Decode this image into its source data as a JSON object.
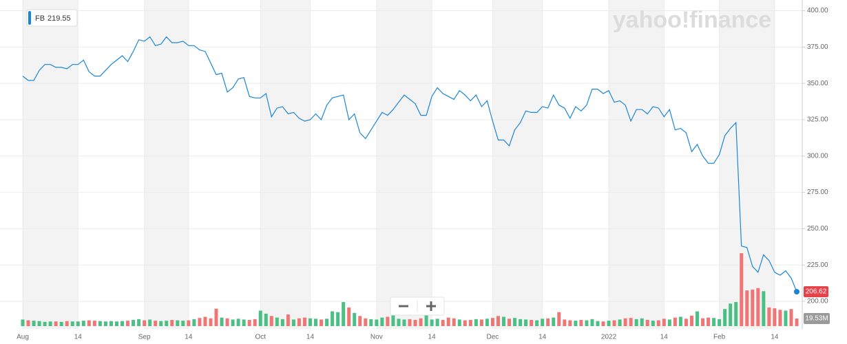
{
  "chart_data": {
    "type": "line",
    "watermark": "yahoo!finance",
    "legend_value": 219.55,
    "categories": [
      "Aug",
      null,
      null,
      null,
      null,
      null,
      null,
      null,
      null,
      null,
      "14",
      null,
      null,
      null,
      null,
      null,
      null,
      null,
      null,
      null,
      null,
      null,
      "Sep",
      null,
      null,
      null,
      null,
      null,
      null,
      null,
      "14",
      null,
      null,
      null,
      null,
      null,
      null,
      null,
      null,
      null,
      null,
      null,
      null,
      "Oct",
      null,
      null,
      null,
      null,
      null,
      null,
      null,
      null,
      "14",
      null,
      null,
      null,
      null,
      null,
      null,
      null,
      null,
      null,
      null,
      null,
      "Nov",
      null,
      null,
      null,
      null,
      null,
      null,
      null,
      null,
      null,
      "14",
      null,
      null,
      null,
      null,
      null,
      null,
      null,
      null,
      null,
      null,
      "Dec",
      null,
      null,
      null,
      null,
      null,
      null,
      null,
      null,
      "14",
      null,
      null,
      null,
      null,
      null,
      null,
      null,
      null,
      null,
      null,
      null,
      "2022",
      null,
      null,
      null,
      null,
      null,
      null,
      null,
      null,
      null,
      "14",
      null,
      null,
      null,
      null,
      null,
      null,
      null,
      null,
      null,
      "Feb",
      null,
      null,
      null,
      null,
      null,
      null,
      null,
      null,
      null,
      "14",
      null,
      null,
      null,
      null
    ],
    "series": [
      {
        "name": "FB",
        "color": "#1a85d6",
        "values": [
          355,
          352,
          352,
          359,
          363,
          363,
          361,
          361,
          360,
          363,
          363,
          366,
          358,
          355,
          355,
          359,
          363,
          366,
          369,
          365,
          372,
          380,
          379,
          382,
          376,
          377,
          382,
          378,
          378,
          379,
          376,
          376,
          373,
          372,
          364,
          356,
          357,
          344,
          347,
          353,
          354,
          341,
          340,
          340,
          343,
          327,
          333,
          334,
          329,
          330,
          326,
          324,
          325,
          329,
          325,
          335,
          340,
          341,
          342,
          325,
          329,
          316,
          312,
          318,
          324,
          330,
          328,
          332,
          337,
          342,
          339,
          336,
          328,
          328,
          341,
          347,
          343,
          341,
          339,
          345,
          342,
          338,
          342,
          334,
          338,
          324,
          311,
          311,
          307,
          318,
          323,
          331,
          330,
          330,
          334,
          333,
          342,
          335,
          333,
          326,
          334,
          331,
          335,
          346,
          346,
          343,
          345,
          337,
          338,
          335,
          324,
          332,
          332,
          329,
          334,
          333,
          327,
          332,
          318,
          319,
          316,
          303,
          308,
          300,
          295,
          295,
          301,
          314,
          319,
          323,
          238,
          237,
          224,
          220,
          232,
          228,
          220,
          218,
          221,
          216,
          206.62
        ]
      }
    ],
    "volume": {
      "up_color": "#4cc084",
      "down_color": "#f07676",
      "last_label": "19.53M",
      "values": [
        17,
        15,
        14,
        13,
        11,
        12,
        12,
        11,
        13,
        12,
        12,
        14,
        15,
        14,
        13,
        12,
        13,
        12,
        13,
        14,
        16,
        18,
        15,
        17,
        14,
        13,
        14,
        16,
        15,
        14,
        15,
        18,
        21,
        24,
        20,
        45,
        22,
        20,
        17,
        19,
        17,
        16,
        18,
        40,
        32,
        26,
        22,
        18,
        30,
        17,
        20,
        22,
        20,
        19,
        17,
        19,
        38,
        36,
        62,
        48,
        34,
        26,
        20,
        18,
        17,
        22,
        24,
        28,
        19,
        17,
        18,
        16,
        20,
        30,
        17,
        19,
        16,
        22,
        20,
        17,
        15,
        16,
        18,
        17,
        19,
        21,
        26,
        24,
        19,
        21,
        18,
        17,
        16,
        15,
        19,
        20,
        22,
        36,
        17,
        15,
        14,
        16,
        15,
        18,
        13,
        12,
        14,
        15,
        17,
        20,
        21,
        18,
        20,
        16,
        14,
        15,
        19,
        17,
        22,
        24,
        19,
        27,
        38,
        20,
        22,
        21,
        18,
        44,
        58,
        62,
        188,
        92,
        94,
        98,
        90,
        48,
        46,
        42,
        40,
        44,
        19.53
      ]
    },
    "ylim": [
      182,
      405
    ],
    "yticks": [
      {
        "value": 200,
        "label": "200.00"
      },
      {
        "value": 225,
        "label": "225.00"
      },
      {
        "value": 250,
        "label": "250.00"
      },
      {
        "value": 275,
        "label": "275.00"
      },
      {
        "value": 300,
        "label": "300.00"
      },
      {
        "value": 325,
        "label": "325.00"
      },
      {
        "value": 350,
        "label": "350.00"
      },
      {
        "value": 375,
        "label": "375.00"
      },
      {
        "value": 400,
        "label": "400.00"
      }
    ],
    "grid": true,
    "band_color": "#f3f3f3",
    "last_tag_color": "#e5424a"
  }
}
